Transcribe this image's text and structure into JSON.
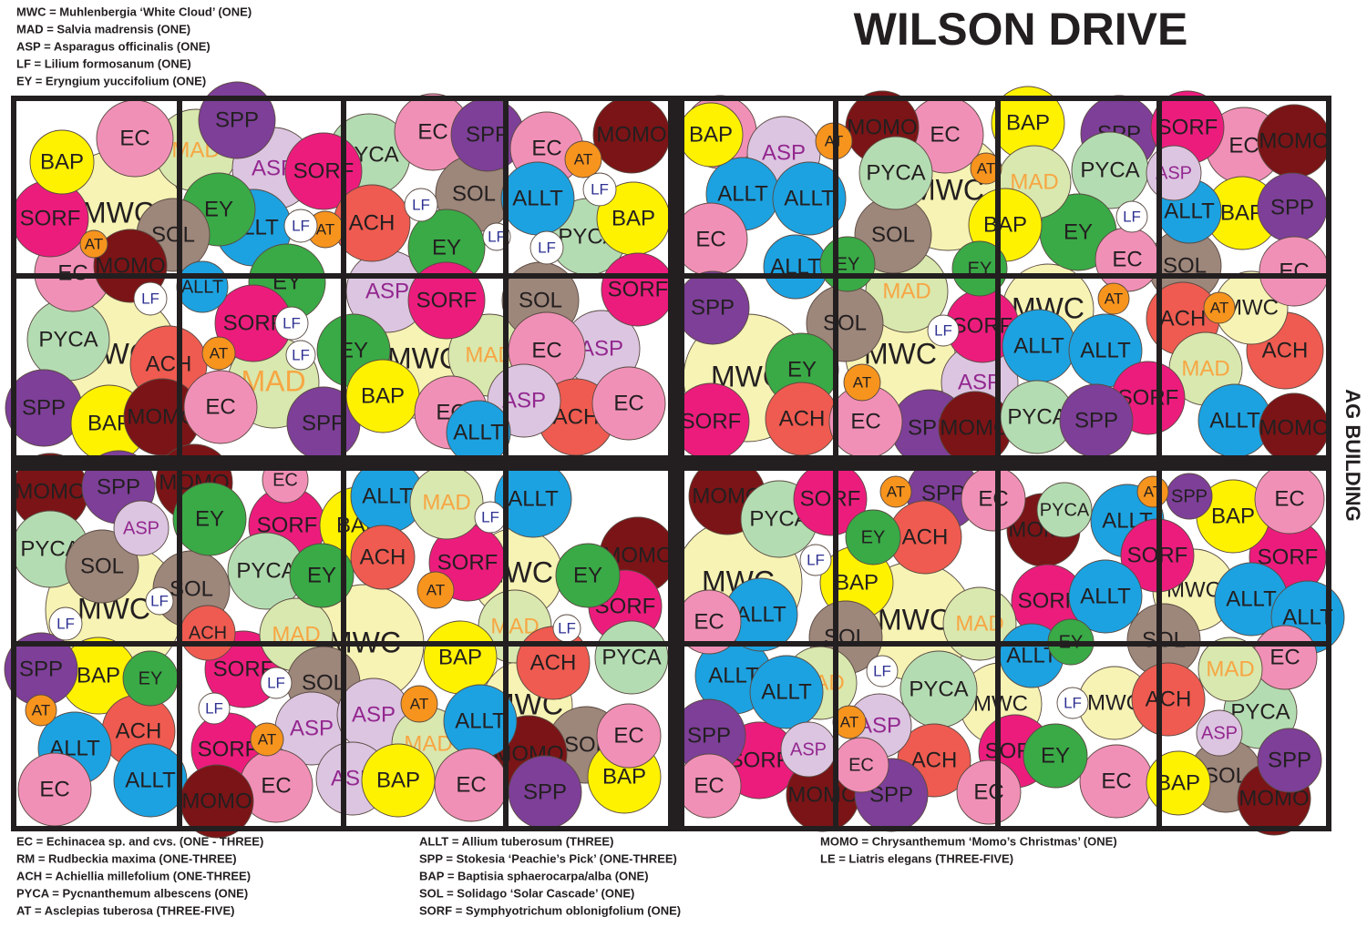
{
  "title": "WILSON DRIVE",
  "side_label": "AG BUILDING",
  "legend_top": [
    "MWC = Muhlenbergia ‘White Cloud’  (ONE)",
    "MAD = Salvia madrensis (ONE)",
    "ASP = Asparagus officinalis (ONE)",
    "LF = Lilium formosanum (ONE)",
    "EY = Eryngium yuccifolium (ONE)"
  ],
  "legend_bottom": [
    [
      "EC = Echinacea sp. and cvs. (ONE - THREE)",
      "RM = Rudbeckia maxima (ONE-THREE)",
      "ACH = Achiellia millefolium (ONE-THREE)",
      "PYCA = Pycnanthemum albescens (ONE)",
      "AT = Asclepias tuberosa (THREE-FIVE)"
    ],
    [
      "ALLT = Allium tuberosum (THREE)",
      "SPP = Stokesia ‘Peachie’s Pick’ (ONE-THREE)",
      "BAP = Baptisia sphaerocarpa/alba (ONE)",
      "SOL = Solidago ‘Solar Cascade’ (ONE)",
      "SORF = Symphyotrichum oblonigfolium (ONE)"
    ],
    [
      "MOMO = Chrysanthemum ‘Momo’s Christmas’ (ONE)",
      "LE = Liatris elegans (THREE-FIVE)"
    ]
  ],
  "circle_colors": {
    "MWC": "#f6f3b4",
    "MAD": "#d9e8ae",
    "ASP": "#dcc5e1",
    "EC": "#f190b7",
    "SPP": "#7d3f98",
    "BAP": "#fff200",
    "SORF": "#ec1c7d",
    "EY": "#39aa46",
    "AT": "#f7941d",
    "SOL": "#9d867a",
    "ALLT": "#1ca2e1",
    "LF": "#ffffff",
    "MOMO": "#7b1416",
    "PYCA": "#b4dcb2",
    "ACH": "#ef5b50"
  },
  "label_colors": {
    "MAD": "#f7a643",
    "ASP": "#93278f",
    "LF": "#2e3192"
  },
  "circles": [
    "MWC",
    "MAD",
    "ASP",
    "EC",
    "SPP",
    "BAP",
    "SORF",
    "EY",
    "EC",
    "AT",
    "SOL",
    "SORF",
    "ALLT",
    "LF",
    "AT",
    "MOMO",
    "EY",
    "ALLT",
    "LF",
    "MWC",
    "PYCA",
    "MAD",
    "SORF",
    "LF",
    "ACH",
    "AT",
    "EC",
    "SPP",
    "BAP",
    "MOMO",
    "SPP",
    "LF",
    "PYCA",
    "EC",
    "SPP",
    "EC",
    "AT",
    "SOL",
    "LF",
    "ACH",
    "EY",
    "ALLT",
    "LF",
    "LF",
    "LF",
    "PYCA",
    "BAP",
    "MOMO",
    "ASP",
    "SORF",
    "SOL",
    "SORF",
    "EY",
    "MWC",
    "MAD",
    "ASP",
    "EC",
    "BAP",
    "EC",
    "ASP",
    "ACH",
    "EC",
    "ALLT",
    "MWC",
    "EC",
    "ASP",
    "BAP",
    "AT",
    "MOMO",
    "EC",
    "BAP",
    "SPP",
    "SORF",
    "EC",
    "MOMO",
    "PYCA",
    "AT",
    "MAD",
    "PYCA",
    "ASP",
    "ALLT",
    "ALLT",
    "EC",
    "SOL",
    "BAP",
    "EY",
    "LF",
    "ALLT",
    "BAP",
    "SPP",
    "ALLT",
    "EY",
    "EY",
    "EC",
    "SOL",
    "EC",
    "MWC",
    "MAD",
    "MWC",
    "SPP",
    "SOL",
    "LF",
    "SORF",
    "MWC",
    "AT",
    "ACH",
    "AT",
    "MWC",
    "ASP",
    "EY",
    "AT",
    "ALLT",
    "ALLT",
    "ACH",
    "MAD",
    "SORF",
    "SORF",
    "ACH",
    "EC",
    "SPP",
    "MOMO",
    "PYCA",
    "SPP",
    "ALLT",
    "MOMO",
    "MWC",
    "MOMO",
    "SPP",
    "ASP",
    "MOMO",
    "EY",
    "PYCA",
    "SOL",
    "SOL",
    "LF",
    "LF",
    "EC",
    "SORF",
    "PYCA",
    "EY",
    "MAD",
    "ACH",
    "ALLT",
    "MAD",
    "BAP",
    "ACH",
    "SORF",
    "AT",
    "LF",
    "ALLT",
    "MWC",
    "EY",
    "MOMO",
    "SORF",
    "MAD",
    "LF",
    "MWC",
    "SPP",
    "BAP",
    "EY",
    "AT",
    "ACH",
    "ALLT",
    "ALLT",
    "EC",
    "LF",
    "SORF",
    "SOL",
    "LF",
    "ASP",
    "ASP",
    "AT",
    "SORF",
    "AT",
    "EC",
    "MOMO",
    "ASP",
    "MAD",
    "BAP",
    "ACH",
    "PYCA",
    "MWC",
    "ALLT",
    "BAP",
    "EC",
    "EC",
    "SOL",
    "MOMO",
    "SPP",
    "BAP",
    "MWC",
    "MOMO",
    "PYCA",
    "SORF",
    "AT",
    "SPP",
    "EC",
    "EY",
    "ACH",
    "PYCA",
    "MOMO",
    "ALLT",
    "AT",
    "SPP",
    "BAP",
    "EC",
    "LF",
    "BAP",
    "MWC",
    "SORF",
    "SORF",
    "SORF",
    "ALLT",
    "MWC",
    "ALLT",
    "ALLT",
    "EC",
    "ALLT",
    "MAD",
    "SOL",
    "SOL",
    "EC",
    "MAD",
    "MAD",
    "ALLT",
    "ALLT",
    "LF",
    "PYCA",
    "MWC",
    "ALLT",
    "EY",
    "LF",
    "MWC",
    "ACH",
    "PYCA",
    "ASP",
    "AT",
    "SPP",
    "SORF",
    "ASP",
    "EC",
    "ACH",
    "EY",
    "SORF",
    "ASP",
    "SPP",
    "EC",
    "MOMO",
    "SPP",
    "EC",
    "EC",
    "BAP",
    "SOL",
    "MOMO"
  ]
}
